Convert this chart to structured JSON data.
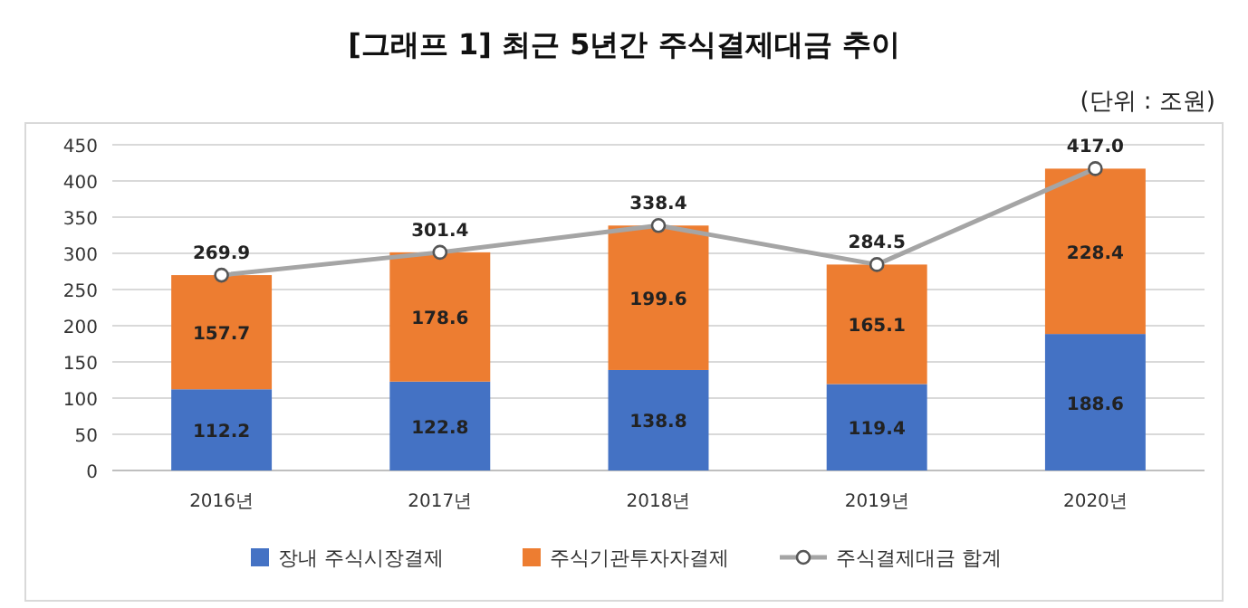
{
  "chart_data": {
    "type": "bar",
    "title": "[그래프 1] 최근 5년간 주식결제대금 추이",
    "annotations": [
      "(단위 : 조원)"
    ],
    "categories": [
      "2016년",
      "2017년",
      "2018년",
      "2019년",
      "2020년"
    ],
    "stacked": true,
    "data_labels": true,
    "grid": "y",
    "legend": "bottom",
    "marker": "circle",
    "ylim": [
      0,
      450
    ],
    "yticks": [
      0,
      50,
      100,
      150,
      200,
      250,
      300,
      350,
      400,
      450
    ],
    "series": [
      {
        "name": "장내 주식시장결제",
        "color": "#4472c4",
        "values": [
          112.2,
          122.8,
          138.8,
          119.4,
          188.6
        ]
      },
      {
        "name": "주식기관투자자결제",
        "color": "#ed7d31",
        "values": [
          157.7,
          178.6,
          199.6,
          165.1,
          228.4
        ]
      },
      {
        "name": "주식결제대금 합계",
        "type": "line",
        "color": "#a5a5a5",
        "values": [
          269.9,
          301.4,
          338.4,
          284.5,
          417.0
        ],
        "value_labels": [
          "269.9",
          "301.4",
          "338.4",
          "284.5",
          "417.0"
        ]
      }
    ]
  }
}
